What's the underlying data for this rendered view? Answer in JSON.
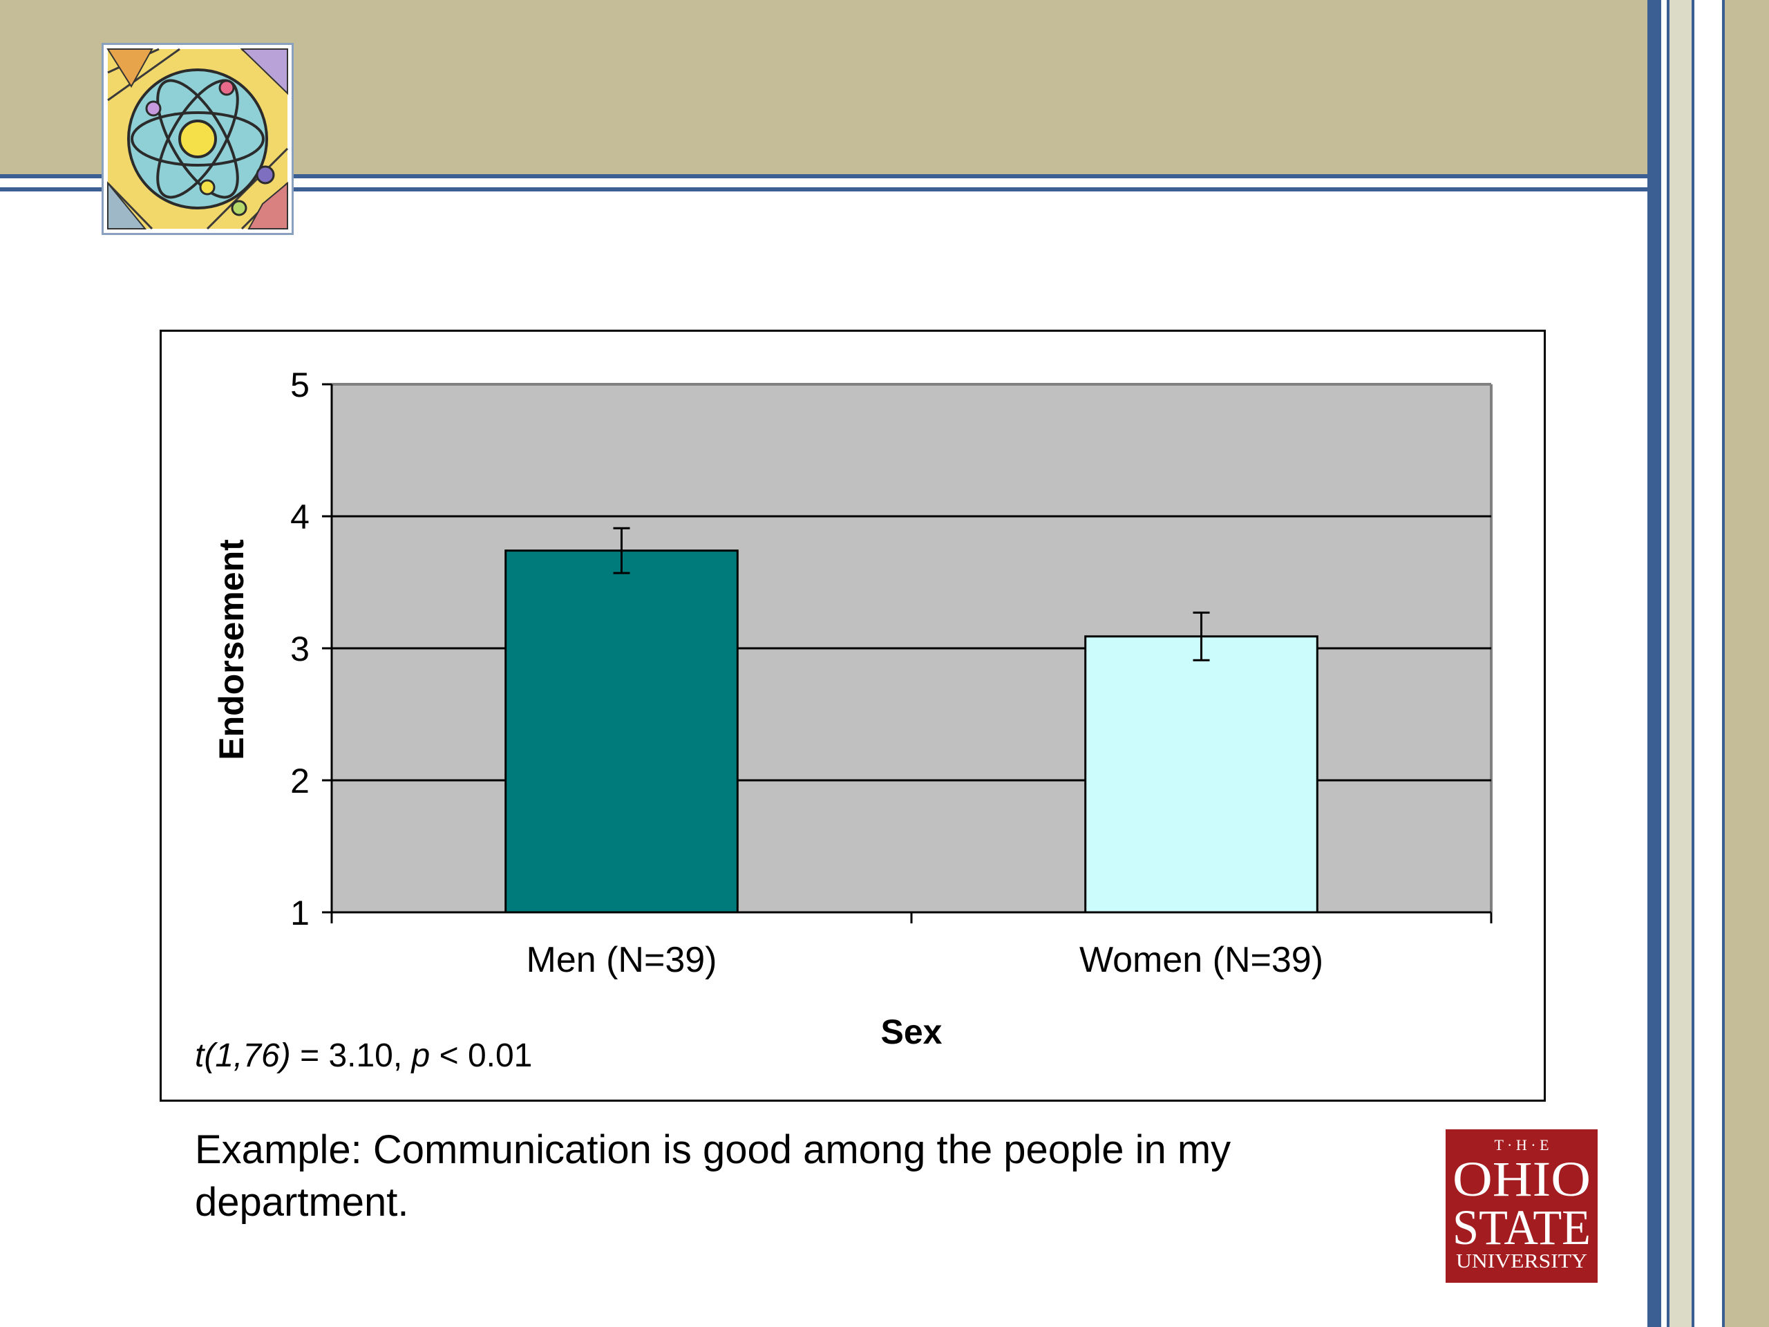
{
  "chart_data": {
    "type": "bar",
    "categories": [
      "Men (N=39)",
      "Women (N=39)"
    ],
    "values": [
      3.74,
      3.09
    ],
    "error_bars": [
      0.17,
      0.18
    ],
    "colors": [
      "#007b7b",
      "#ccfcfc"
    ],
    "title": "",
    "xlabel": "Sex",
    "ylabel": "Endorsement",
    "ylim": [
      1,
      5
    ],
    "yticks": [
      1,
      2,
      3,
      4,
      5
    ],
    "grid": true,
    "plot_background": "#c0c0c0",
    "annotation": "t(1,76) = 3.10, p < 0.01"
  },
  "annotation_parts": {
    "t_symbol": "t(1,76)",
    "t_value": " = 3.10, ",
    "p_symbol": "p",
    "p_value": " < 0.01"
  },
  "caption": "Example: Communication is good among the people in my department.",
  "logos": {
    "clipart": "atom-science-clipart",
    "osu": {
      "brand_color": "#a31c1f",
      "text_the": "T · H · E",
      "text_ohio": "OHIO",
      "text_state": "STATE",
      "text_university": "UNIVERSITY"
    }
  },
  "theme": {
    "band_color": "#c4bd98",
    "line_color": "#3b5f93",
    "stripe_color": "#dcdbc8"
  }
}
